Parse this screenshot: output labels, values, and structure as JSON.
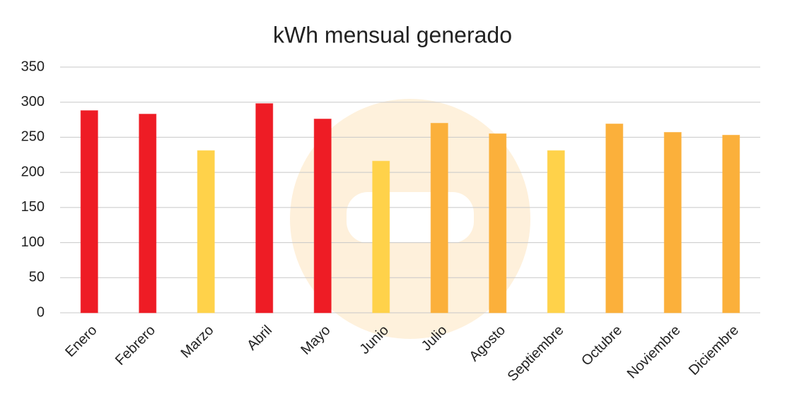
{
  "chart_data": {
    "type": "bar",
    "title": "kWh mensual generado",
    "categories": [
      "Enero",
      "Febrero",
      "Marzo",
      "Abril",
      "Mayo",
      "Junio",
      "Julio",
      "Agosto",
      "Septiembre",
      "Octubre",
      "Noviembre",
      "Diciembre"
    ],
    "values": [
      288,
      283,
      231,
      298,
      276,
      216,
      270,
      255,
      231,
      269,
      257,
      253
    ],
    "colors": [
      "#ee1c25",
      "#ee1c25",
      "#ffd24a",
      "#ee1c25",
      "#ee1c25",
      "#ffd24a",
      "#fbb03b",
      "#fbb03b",
      "#ffd24a",
      "#fbb03b",
      "#fbb03b",
      "#fbb03b"
    ],
    "ylim": [
      0,
      350
    ],
    "yticks": [
      0,
      50,
      100,
      150,
      200,
      250,
      300,
      350
    ],
    "grid": true
  }
}
